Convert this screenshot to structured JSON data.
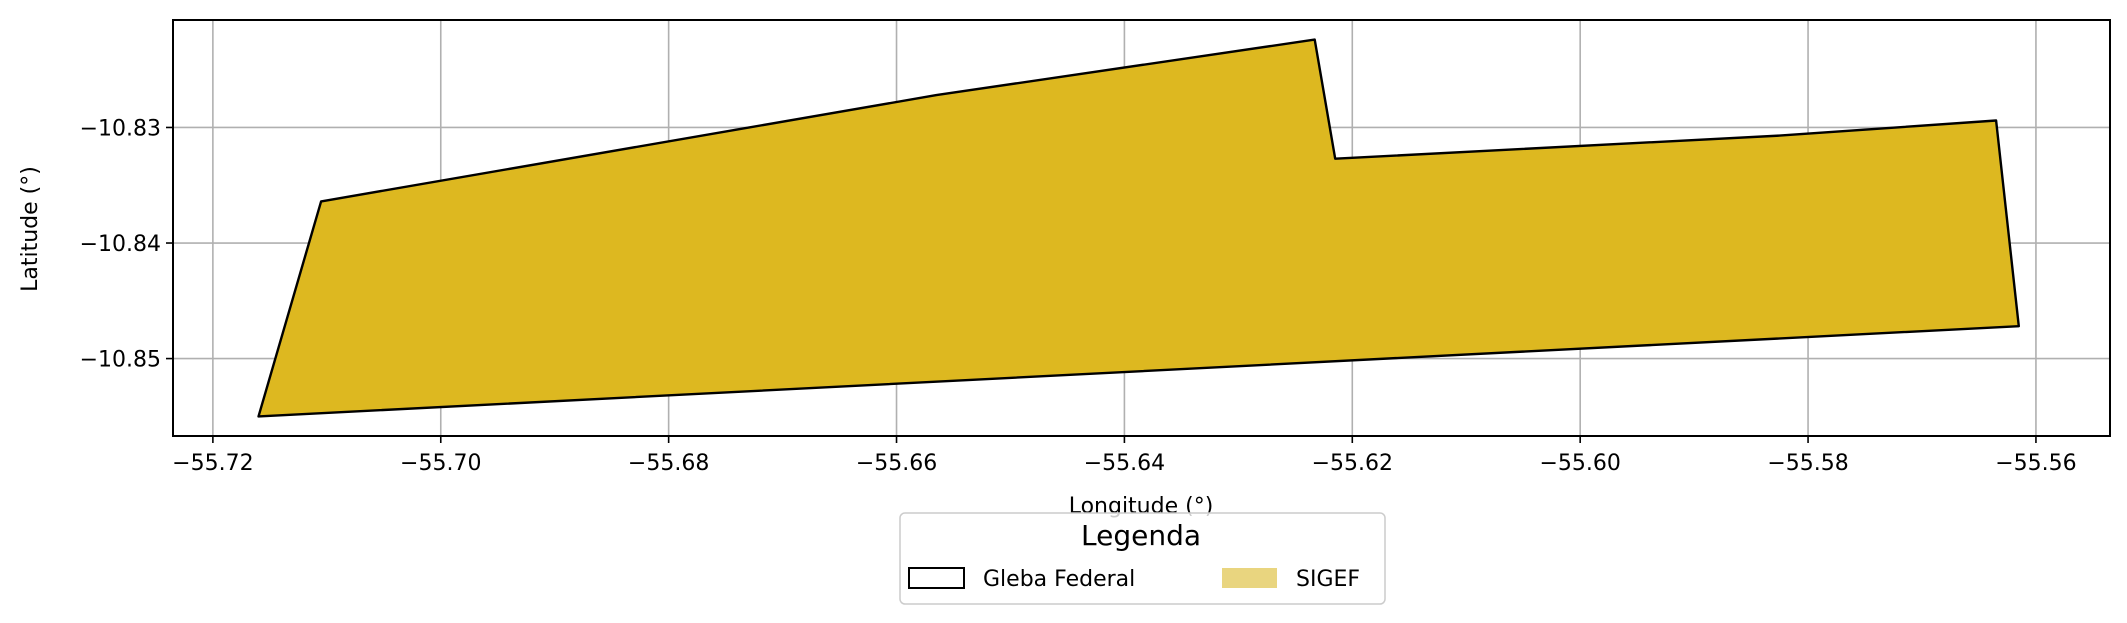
{
  "chart_data": {
    "type": "polygon-map",
    "title": "",
    "xlabel": "Longitude (°)",
    "ylabel": "Latitude (°)",
    "xlim": [
      -55.7235,
      -55.5535
    ],
    "ylim": [
      -10.8567,
      -10.8207
    ],
    "grid": true,
    "x_ticks": [
      -55.72,
      -55.7,
      -55.68,
      -55.66,
      -55.64,
      -55.62,
      -55.6,
      -55.58,
      -55.56
    ],
    "x_tick_labels": [
      "−55.72",
      "−55.70",
      "−55.68",
      "−55.66",
      "−55.64",
      "−55.62",
      "−55.60",
      "−55.58",
      "−55.56"
    ],
    "y_ticks": [
      -10.83,
      -10.84,
      -10.85
    ],
    "y_tick_labels": [
      "−10.83",
      "−10.84",
      "−10.85"
    ],
    "series": [
      {
        "name": "Gleba Federal",
        "kind": "outline",
        "edge_color": "#000000",
        "polygon": [
          [
            -55.716,
            -10.855
          ],
          [
            -55.7105,
            -10.8364
          ],
          [
            -55.6565,
            -10.8272
          ],
          [
            -55.6233,
            -10.8224
          ],
          [
            -55.6215,
            -10.8327
          ],
          [
            -55.5825,
            -10.8307
          ],
          [
            -55.5635,
            -10.8294
          ],
          [
            -55.5615,
            -10.8472
          ],
          [
            -55.716,
            -10.855
          ]
        ]
      },
      {
        "name": "SIGEF",
        "kind": "fill",
        "fill_color": "#ddb820",
        "legend_swatch_color": "#e9d57f",
        "polygon": [
          [
            -55.716,
            -10.855
          ],
          [
            -55.7105,
            -10.8364
          ],
          [
            -55.6565,
            -10.8272
          ],
          [
            -55.6233,
            -10.8224
          ],
          [
            -55.6215,
            -10.8327
          ],
          [
            -55.5825,
            -10.8307
          ],
          [
            -55.5635,
            -10.8294
          ],
          [
            -55.5615,
            -10.8472
          ],
          [
            -55.716,
            -10.855
          ]
        ]
      }
    ],
    "legend": {
      "title": "Legenda",
      "placement": "bottom-center",
      "entries": [
        "Gleba Federal",
        "SIGEF"
      ]
    }
  }
}
